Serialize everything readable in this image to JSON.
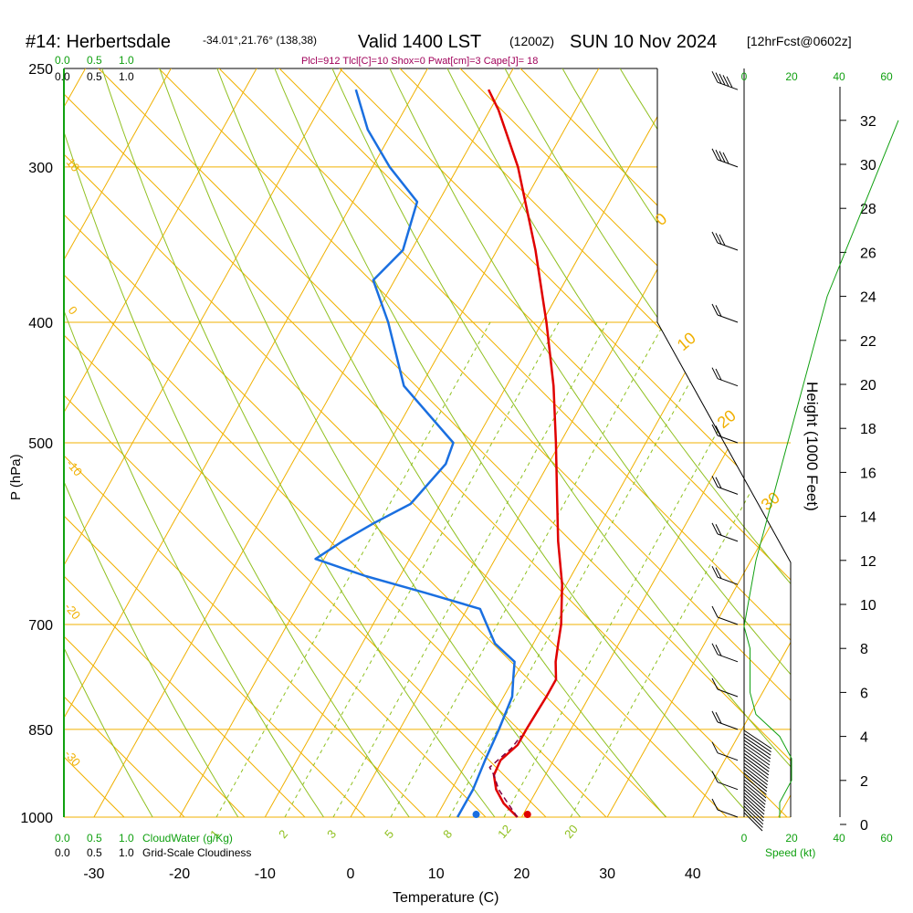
{
  "header": {
    "station": "#14: Herbertsdale",
    "coords": "-34.01°,21.76° (138,38)",
    "valid": "Valid 1400 LST",
    "utc": "(1200Z)",
    "date": "SUN 10 Nov 2024",
    "forecast": "[12hrFcst@0602z]"
  },
  "indices": "Plcl=912 Tlcl[C]=10 Shox=0 Pwat[cm]=3 Cape[J]= 18",
  "colors": {
    "temperature": "#e00000",
    "dewpoint": "#1a6fe0",
    "isotherm": "#f0b000",
    "dry_adiabat": "#90c020",
    "mixing_ratio": "#90c020",
    "green_text": "#10a010",
    "indices_text": "#a0005a",
    "parcel": "#800040"
  },
  "chart_data": {
    "type": "line",
    "title": "Skew-T log-P sounding",
    "xlabel": "Temperature (C)",
    "ylabel": "P (hPa)",
    "y2label": "Height (1000 Feet)",
    "x_ticks": [
      "-30",
      "-20",
      "-10",
      "0",
      "10",
      "20",
      "30",
      "40"
    ],
    "x_tick_values": [
      -30,
      -20,
      -10,
      0,
      10,
      20,
      30,
      40
    ],
    "pressure_ticks": [
      "250",
      "300",
      "400",
      "500",
      "700",
      "850",
      "1000"
    ],
    "pressure_values": [
      250,
      300,
      400,
      500,
      700,
      850,
      1000
    ],
    "height_ticks": [
      "0",
      "2",
      "4",
      "6",
      "8",
      "10",
      "12",
      "14",
      "16",
      "18",
      "20",
      "22",
      "24",
      "26",
      "28",
      "30",
      "32"
    ],
    "isotherm_labels": [
      "10",
      "0",
      "-10",
      "-20",
      "-30",
      "0",
      "10",
      "20",
      "30"
    ],
    "mixing_ratio_labels": [
      "1",
      "2",
      "3",
      "5",
      "8",
      "12",
      "20"
    ],
    "mixing_ratio_values": [
      1,
      2,
      3,
      5,
      8,
      12,
      20
    ],
    "cloud_scale_top": [
      "0.0",
      "0.5",
      "1.0"
    ],
    "cloud_scale_top2": [
      "0.0",
      "0.5",
      "1.0"
    ],
    "cloud_scale_bottom": [
      "0.0",
      "0.5",
      "1.0"
    ],
    "cloud_scale_bottom2": [
      "0.0",
      "0.5",
      "1.0"
    ],
    "cloudwater_label": "CloudWater (g/Kg)",
    "cloudiness_label": "Grid-Scale Cloudiness",
    "speed_ticks": [
      "0",
      "20",
      "40",
      "60"
    ],
    "speed_label": "Speed (kt)",
    "temperature_profile": [
      {
        "p": 1000,
        "t": 19.5
      },
      {
        "p": 975,
        "t": 17.0
      },
      {
        "p": 950,
        "t": 15.2
      },
      {
        "p": 925,
        "t": 14.0
      },
      {
        "p": 900,
        "t": 13.8
      },
      {
        "p": 875,
        "t": 14.8
      },
      {
        "p": 850,
        "t": 14.8
      },
      {
        "p": 825,
        "t": 14.9
      },
      {
        "p": 800,
        "t": 15.0
      },
      {
        "p": 775,
        "t": 15.0
      },
      {
        "p": 750,
        "t": 13.8
      },
      {
        "p": 725,
        "t": 12.9
      },
      {
        "p": 700,
        "t": 12.0
      },
      {
        "p": 650,
        "t": 9.5
      },
      {
        "p": 600,
        "t": 6.2
      },
      {
        "p": 550,
        "t": 3.0
      },
      {
        "p": 500,
        "t": -0.5
      },
      {
        "p": 450,
        "t": -4.5
      },
      {
        "p": 400,
        "t": -9.5
      },
      {
        "p": 350,
        "t": -15.5
      },
      {
        "p": 300,
        "t": -23.0
      },
      {
        "p": 270,
        "t": -29.0
      },
      {
        "p": 260,
        "t": -31.5
      }
    ],
    "dewpoint_profile": [
      {
        "p": 1000,
        "t": 12.5
      },
      {
        "p": 975,
        "t": 12.5
      },
      {
        "p": 950,
        "t": 12.5
      },
      {
        "p": 900,
        "t": 12.0
      },
      {
        "p": 850,
        "t": 11.6
      },
      {
        "p": 800,
        "t": 11.0
      },
      {
        "p": 775,
        "t": 10.0
      },
      {
        "p": 750,
        "t": 9.0
      },
      {
        "p": 725,
        "t": 5.5
      },
      {
        "p": 700,
        "t": 3.3
      },
      {
        "p": 680,
        "t": 1.5
      },
      {
        "p": 660,
        "t": -6.0
      },
      {
        "p": 640,
        "t": -14.0
      },
      {
        "p": 620,
        "t": -21.0
      },
      {
        "p": 600,
        "t": -19.0
      },
      {
        "p": 580,
        "t": -16.5
      },
      {
        "p": 560,
        "t": -13.5
      },
      {
        "p": 520,
        "t": -12.0
      },
      {
        "p": 500,
        "t": -12.5
      },
      {
        "p": 450,
        "t": -22.0
      },
      {
        "p": 400,
        "t": -28.0
      },
      {
        "p": 370,
        "t": -32.5
      },
      {
        "p": 350,
        "t": -31.0
      },
      {
        "p": 320,
        "t": -32.5
      },
      {
        "p": 300,
        "t": -38.0
      },
      {
        "p": 280,
        "t": -43.0
      },
      {
        "p": 260,
        "t": -47.0
      }
    ],
    "parcel_profile": [
      {
        "p": 1000,
        "t": 19.5
      },
      {
        "p": 975,
        "t": 17.5
      },
      {
        "p": 950,
        "t": 15.5
      },
      {
        "p": 925,
        "t": 14.0
      },
      {
        "p": 912,
        "t": 13.0
      },
      {
        "p": 880,
        "t": 14.3
      },
      {
        "p": 860,
        "t": 14.6
      }
    ],
    "surface_temperature": 20.5,
    "surface_dewpoint": 14.5,
    "wind_profile": [
      {
        "p": 1000,
        "spd": 5
      },
      {
        "p": 950,
        "spd": 10
      },
      {
        "p": 900,
        "spd": 12
      },
      {
        "p": 850,
        "spd": 15
      },
      {
        "p": 800,
        "spd": 12
      },
      {
        "p": 750,
        "spd": 15
      },
      {
        "p": 700,
        "spd": 12
      },
      {
        "p": 650,
        "spd": 15
      },
      {
        "p": 600,
        "spd": 15
      },
      {
        "p": 550,
        "spd": 15
      },
      {
        "p": 500,
        "spd": 15
      },
      {
        "p": 450,
        "spd": 15
      },
      {
        "p": 400,
        "spd": 20
      },
      {
        "p": 350,
        "spd": 25
      },
      {
        "p": 300,
        "spd": 35
      },
      {
        "p": 260,
        "spd": 45
      }
    ],
    "speed_profile": [
      {
        "h": 0.3,
        "spd": 3
      },
      {
        "h": 1,
        "spd": 3
      },
      {
        "h": 2,
        "spd": 4
      },
      {
        "h": 3,
        "spd": 4
      },
      {
        "h": 4,
        "spd": 3
      },
      {
        "h": 5,
        "spd": 1
      },
      {
        "h": 6,
        "spd": 0.5
      },
      {
        "h": 8,
        "spd": 0.5
      },
      {
        "h": 9,
        "spd": 0
      },
      {
        "h": 12,
        "spd": 1
      },
      {
        "h": 16,
        "spd": 3
      },
      {
        "h": 20,
        "spd": 5
      },
      {
        "h": 24,
        "spd": 7
      },
      {
        "h": 28,
        "spd": 10
      },
      {
        "h": 32,
        "spd": 13
      }
    ]
  }
}
